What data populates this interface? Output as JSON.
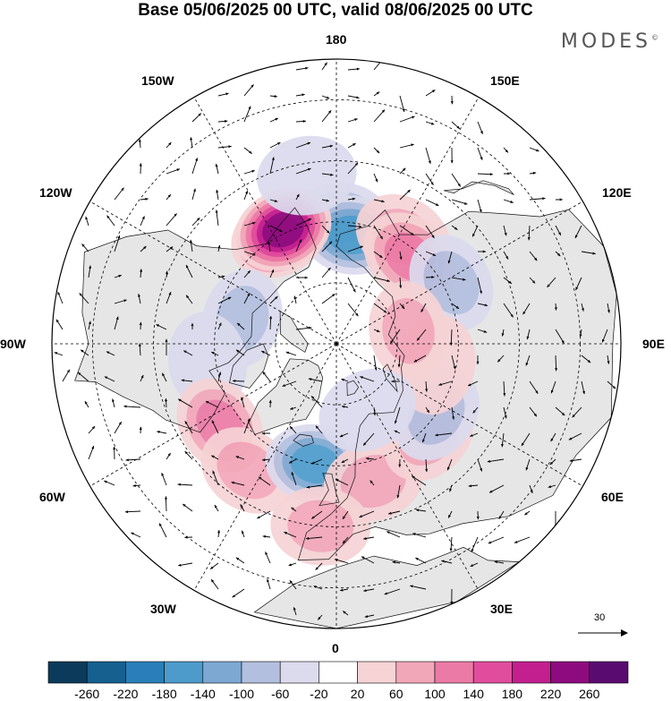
{
  "title": "Base 05/06/2025 00 UTC, valid 08/06/2025 00 UTC",
  "brand": {
    "name": "MODES",
    "mark": "©"
  },
  "longitude_labels": {
    "lon_180": "180",
    "lon_150e": "150E",
    "lon_120e": "120E",
    "lon_90e": "90E",
    "lon_60e": "60E",
    "lon_30e": "30E",
    "lon_0": "0",
    "lon_30w": "30W",
    "lon_60w": "60W",
    "lon_90w": "90W",
    "lon_120w": "120W",
    "lon_150w": "150W"
  },
  "vector_scale": {
    "value": "30"
  },
  "colorbar": {
    "ticks": [
      "-260",
      "-220",
      "-180",
      "-140",
      "-100",
      "-60",
      "-20",
      "20",
      "60",
      "100",
      "140",
      "180",
      "220",
      "260"
    ],
    "colors": [
      "#0c3a5a",
      "#15608f",
      "#2a7fba",
      "#4c9bcb",
      "#7da8d2",
      "#b3bfdf",
      "#dcdbee",
      "#ffffff",
      "#f6d3d5",
      "#f2a7b9",
      "#ec7aa6",
      "#e14d9c",
      "#c31f8f",
      "#8e0b7f",
      "#5a0b70"
    ]
  },
  "map_colors": {
    "land_fill": "#e6e6e6",
    "coast": "#111111",
    "grid": "#000000"
  },
  "anomalies": [
    {
      "lon": 178,
      "lat": 60,
      "value": -120
    },
    {
      "lon": 172,
      "lat": 63,
      "value": -150
    },
    {
      "lon": 148,
      "lat": 59,
      "value": 95
    },
    {
      "lon": 140,
      "lat": 62,
      "value": 110
    },
    {
      "lon": 118,
      "lat": 58,
      "value": -60
    },
    {
      "lon": -152,
      "lat": 60,
      "value": 180
    },
    {
      "lon": -155,
      "lat": 59,
      "value": 230
    },
    {
      "lon": -105,
      "lat": 66,
      "value": -70
    },
    {
      "lon": -82,
      "lat": 58,
      "value": -45
    },
    {
      "lon": -55,
      "lat": 55,
      "value": 120
    },
    {
      "lon": -35,
      "lat": 52,
      "value": 70
    },
    {
      "lon": -10,
      "lat": 60,
      "value": -150
    },
    {
      "lon": 15,
      "lat": 55,
      "value": 95
    },
    {
      "lon": 45,
      "lat": 58,
      "value": 70
    },
    {
      "lon": 55,
      "lat": 60,
      "value": -60
    },
    {
      "lon": 78,
      "lat": 65,
      "value": 55
    },
    {
      "lon": 100,
      "lat": 72,
      "value": 60
    },
    {
      "lon": 25,
      "lat": 72,
      "value": -40
    },
    {
      "lon": -170,
      "lat": 48,
      "value": -45
    },
    {
      "lon": -5,
      "lat": 45,
      "value": 60
    }
  ]
}
